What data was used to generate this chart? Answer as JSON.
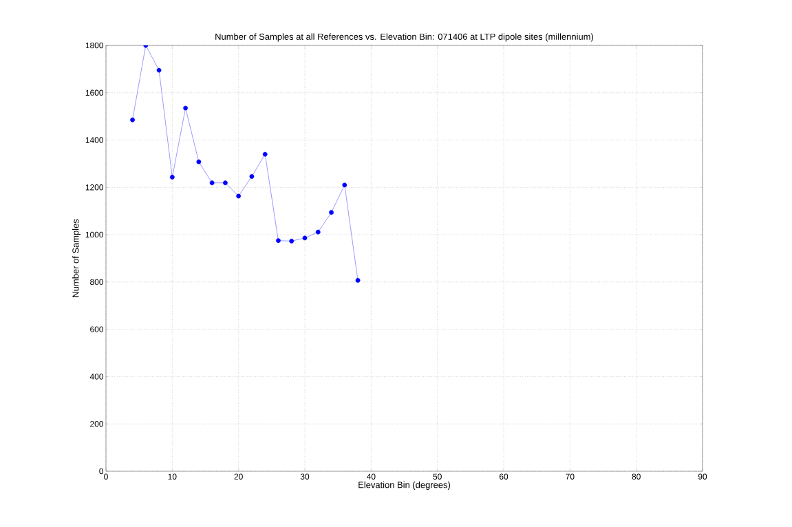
{
  "chart_data": {
    "type": "line",
    "title": "Number of Samples at all References vs. Elevation Bin: 071406 at LTP dipole sites (millennium)",
    "xlabel": "Elevation Bin (degrees)",
    "ylabel": "Number of Samples",
    "x": [
      4,
      6,
      8,
      10,
      12,
      14,
      16,
      18,
      20,
      22,
      24,
      26,
      28,
      30,
      32,
      34,
      36,
      38
    ],
    "series": [
      {
        "color": "#0000ff",
        "values": [
          1485,
          1800,
          1695,
          1243,
          1535,
          1308,
          1219,
          1219,
          1163,
          1246,
          1340,
          975,
          973,
          986,
          1011,
          1094,
          1210,
          807
        ]
      }
    ],
    "xlim": [
      0,
      90
    ],
    "xticks": [
      0,
      10,
      20,
      30,
      40,
      50,
      60,
      70,
      80,
      90
    ],
    "ylim": [
      0,
      1800
    ],
    "yticks": [
      0,
      200,
      400,
      600,
      800,
      1000,
      1200,
      1400,
      1600,
      1800
    ],
    "grid": true,
    "marker": "circle",
    "line_style": "solid"
  }
}
